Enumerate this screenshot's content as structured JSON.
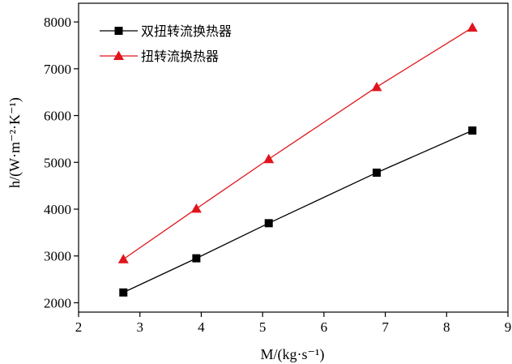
{
  "chart_data": {
    "type": "line",
    "xlabel": "M/(kg·s⁻¹)",
    "ylabel": "h/(W·m⁻²·K⁻¹)",
    "xlim": [
      2,
      9
    ],
    "ylim": [
      1800,
      8400
    ],
    "xticks": [
      2,
      3,
      4,
      5,
      6,
      7,
      8,
      9
    ],
    "yticks": [
      2000,
      3000,
      4000,
      5000,
      6000,
      7000,
      8000
    ],
    "grid": false,
    "legend_position": "top-left",
    "series": [
      {
        "name": "双扭转流换热器",
        "color": "#000000",
        "marker": "square",
        "x": [
          2.73,
          3.92,
          5.1,
          6.86,
          8.42
        ],
        "y": [
          2220,
          2950,
          3700,
          4780,
          5680
        ]
      },
      {
        "name": "扭转流换热器",
        "color": "#e0151c",
        "marker": "triangle",
        "x": [
          2.73,
          3.92,
          5.1,
          6.86,
          8.42
        ],
        "y": [
          2930,
          4010,
          5070,
          6610,
          7880
        ]
      }
    ]
  }
}
